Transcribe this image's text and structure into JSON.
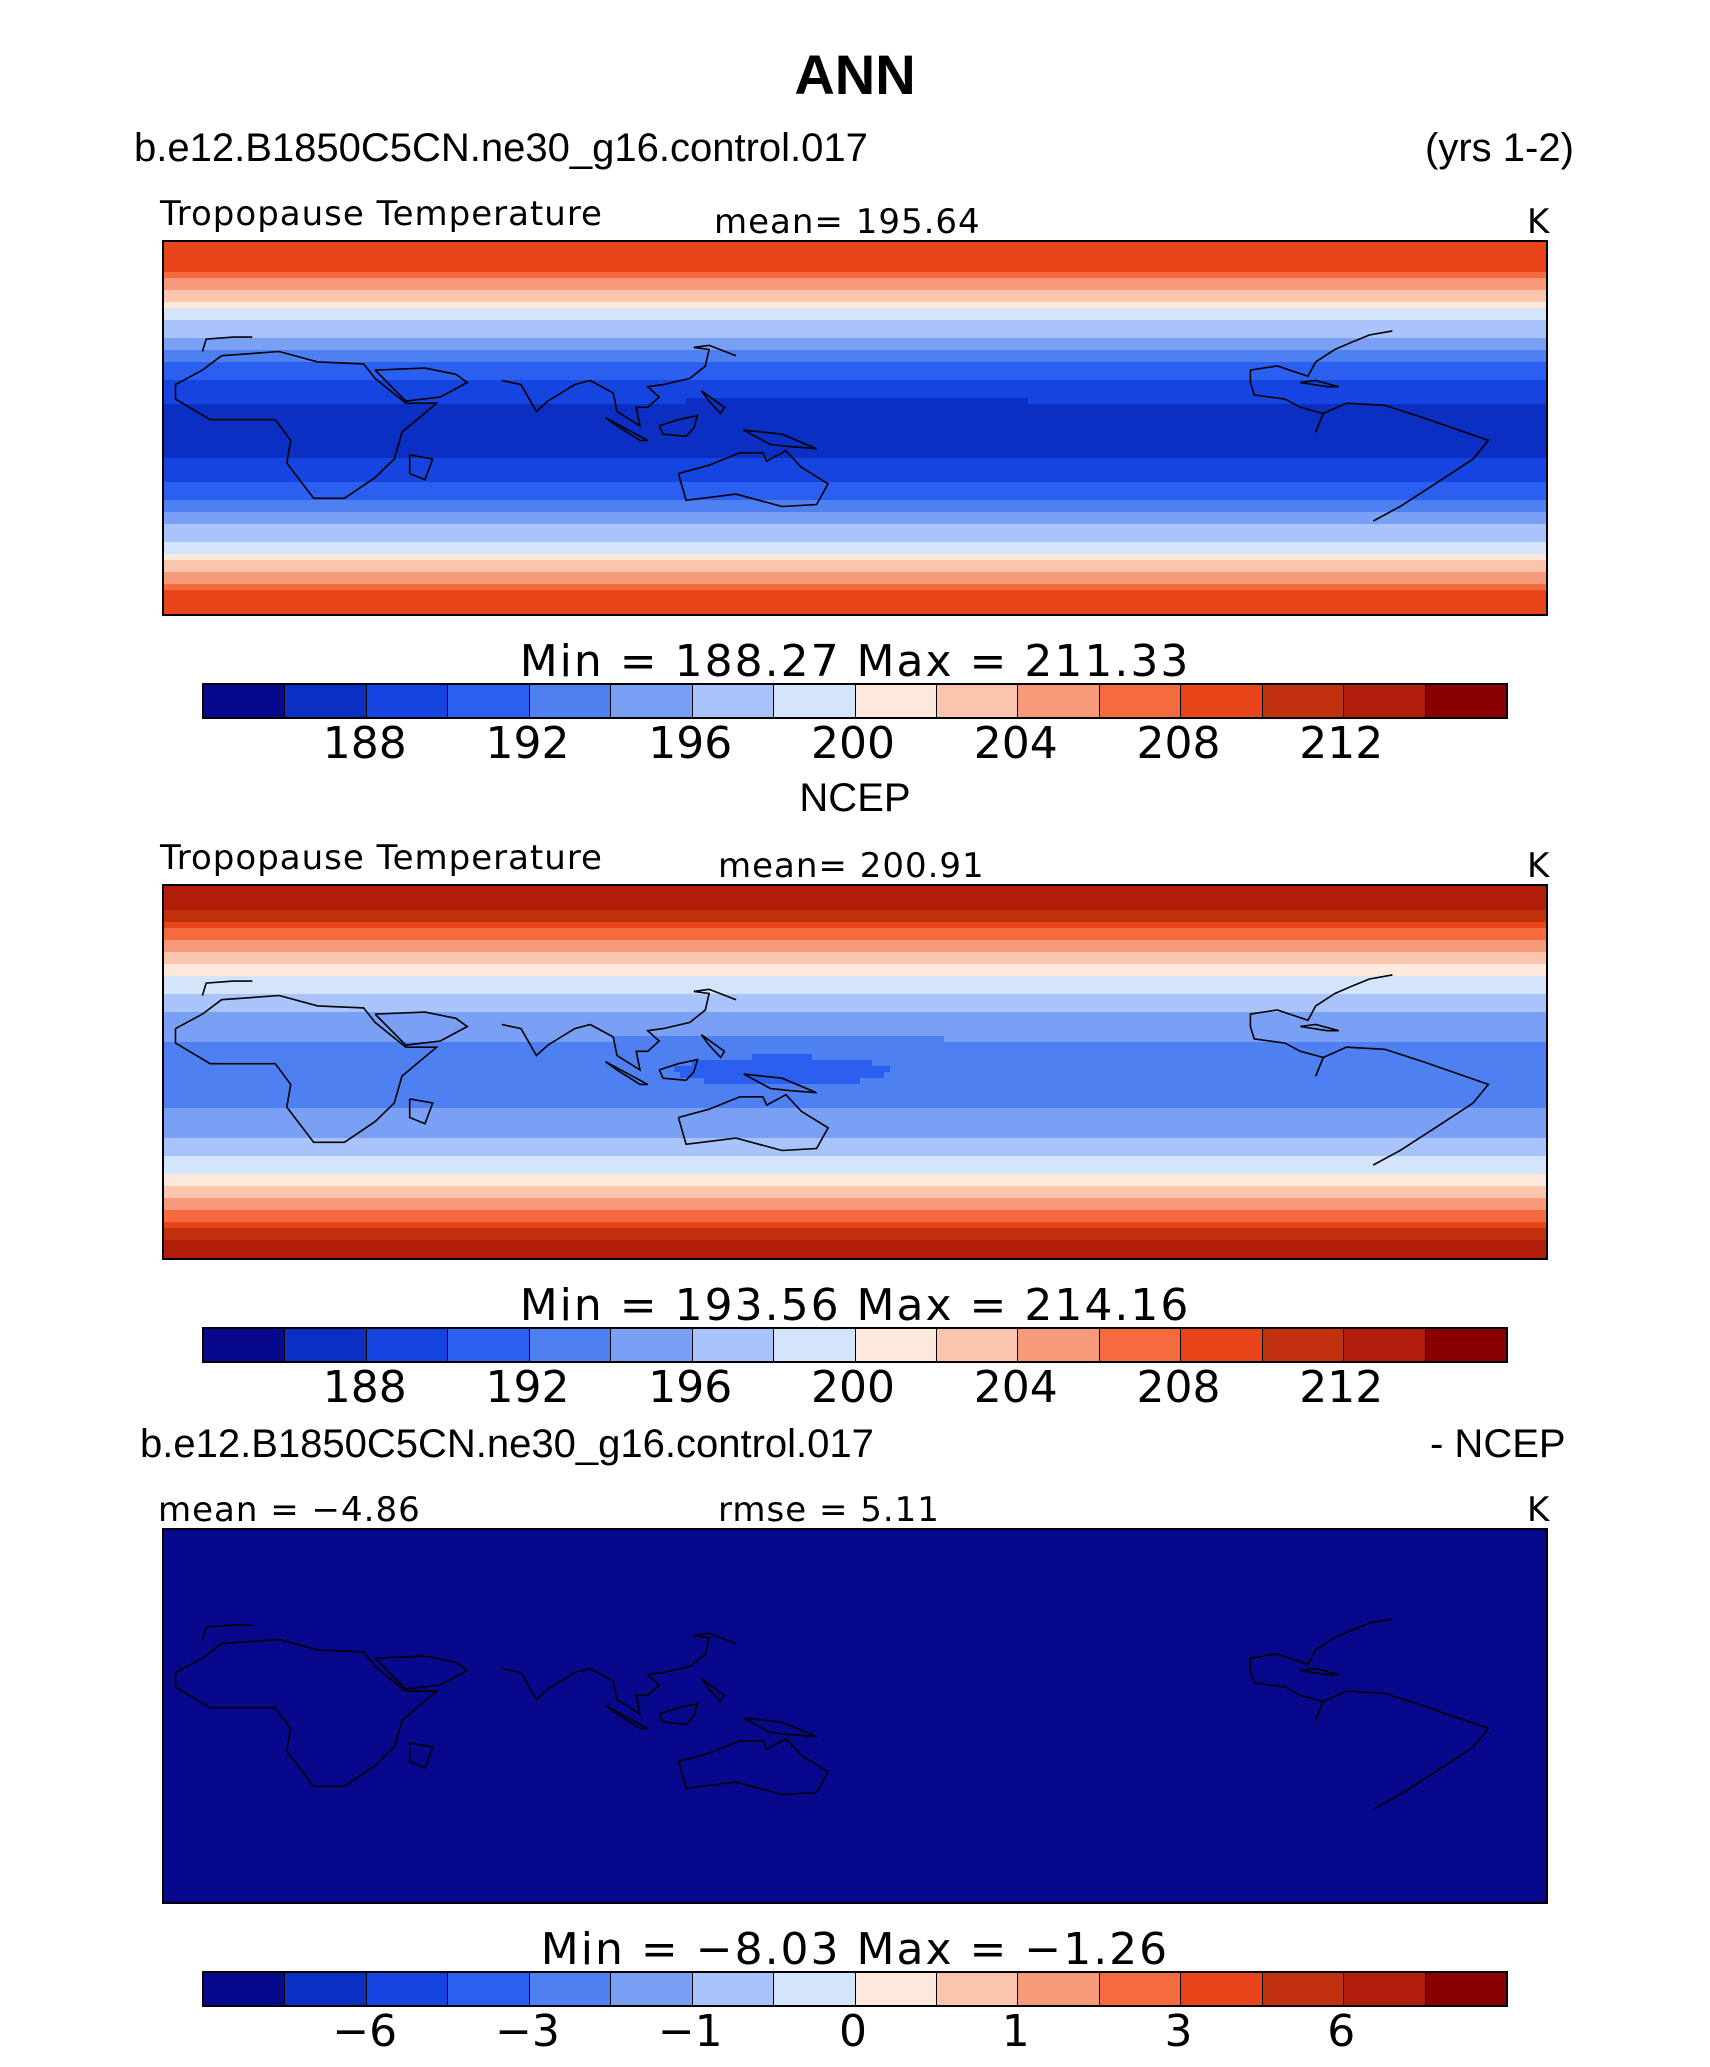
{
  "title": "ANN",
  "case_name": "b.e12.B1850C5CN.ne30_g16.control.017",
  "years": "(yrs 1-2)",
  "palette": [
    "#08088c",
    "#0a2fc2",
    "#1544e0",
    "#2b5ff0",
    "#4f80f2",
    "#7aa0f5",
    "#a9c4fa",
    "#d3e4fb",
    "#fde8dc",
    "#fbc5ad",
    "#f79a79",
    "#f56a3e",
    "#e8441a",
    "#c2310f",
    "#b01d0b",
    "#8a0000"
  ],
  "panels": [
    {
      "field": "Tropopause Temperature",
      "mean": "mean=  195.64",
      "units": "K",
      "minmax": "Min  =  188.27  Max  =  211.33",
      "ticks": [
        "188",
        "192",
        "196",
        "200",
        "204",
        "208",
        "212"
      ],
      "pattern": "model"
    },
    {
      "header": "NCEP",
      "field": "Tropopause Temperature",
      "mean": "mean=  200.91",
      "units": "K",
      "minmax": "Min  =  193.56  Max  =  214.16",
      "ticks": [
        "188",
        "192",
        "196",
        "200",
        "204",
        "208",
        "212"
      ],
      "pattern": "obs"
    },
    {
      "header_left": "b.e12.B1850C5CN.ne30_g16.control.017",
      "header_right": "- NCEP",
      "mean": "mean  =    −4.86",
      "rmse": "rmse  =     5.11",
      "units": "K",
      "minmax": "Min  =    −8.03  Max  =    −1.26",
      "ticks": [
        "−6",
        "−3",
        "−1",
        "0",
        "1",
        "3",
        "6"
      ],
      "pattern": "diff"
    }
  ]
}
